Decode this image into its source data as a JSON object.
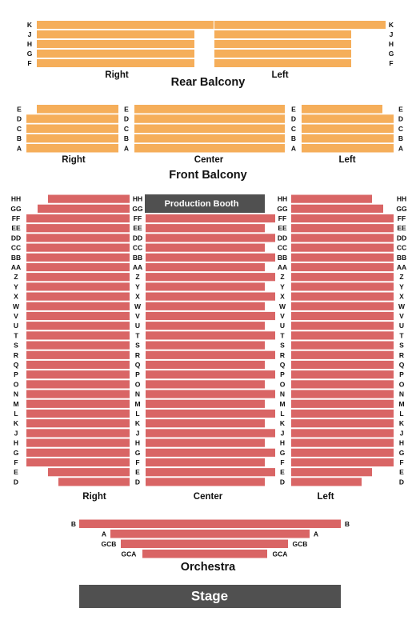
{
  "colors": {
    "balcony": "#F5AE5A",
    "orchestra": "#D96565",
    "dark": "#505050",
    "dark_text": "#FFFFFF",
    "label": "#111111"
  },
  "rear_balcony": {
    "title": "Rear Balcony",
    "section_right": "Right",
    "section_left": "Left",
    "rows": [
      "K",
      "J",
      "H",
      "G",
      "F"
    ]
  },
  "front_balcony": {
    "title": "Front Balcony",
    "section_right": "Right",
    "section_center": "Center",
    "section_left": "Left",
    "rows": [
      "E",
      "D",
      "C",
      "B",
      "A"
    ]
  },
  "main_floor": {
    "booth": "Production Booth",
    "section_right": "Right",
    "section_center": "Center",
    "section_left": "Left",
    "rows": [
      "HH",
      "GG",
      "FF",
      "EE",
      "DD",
      "CC",
      "BB",
      "AA",
      "Z",
      "Y",
      "X",
      "W",
      "V",
      "U",
      "T",
      "S",
      "R",
      "Q",
      "P",
      "O",
      "N",
      "M",
      "L",
      "K",
      "J",
      "H",
      "G",
      "F",
      "E",
      "D"
    ]
  },
  "orchestra": {
    "title": "Orchestra",
    "rows": [
      "B",
      "A",
      "GCB",
      "GCA"
    ]
  },
  "stage": {
    "label": "Stage"
  }
}
